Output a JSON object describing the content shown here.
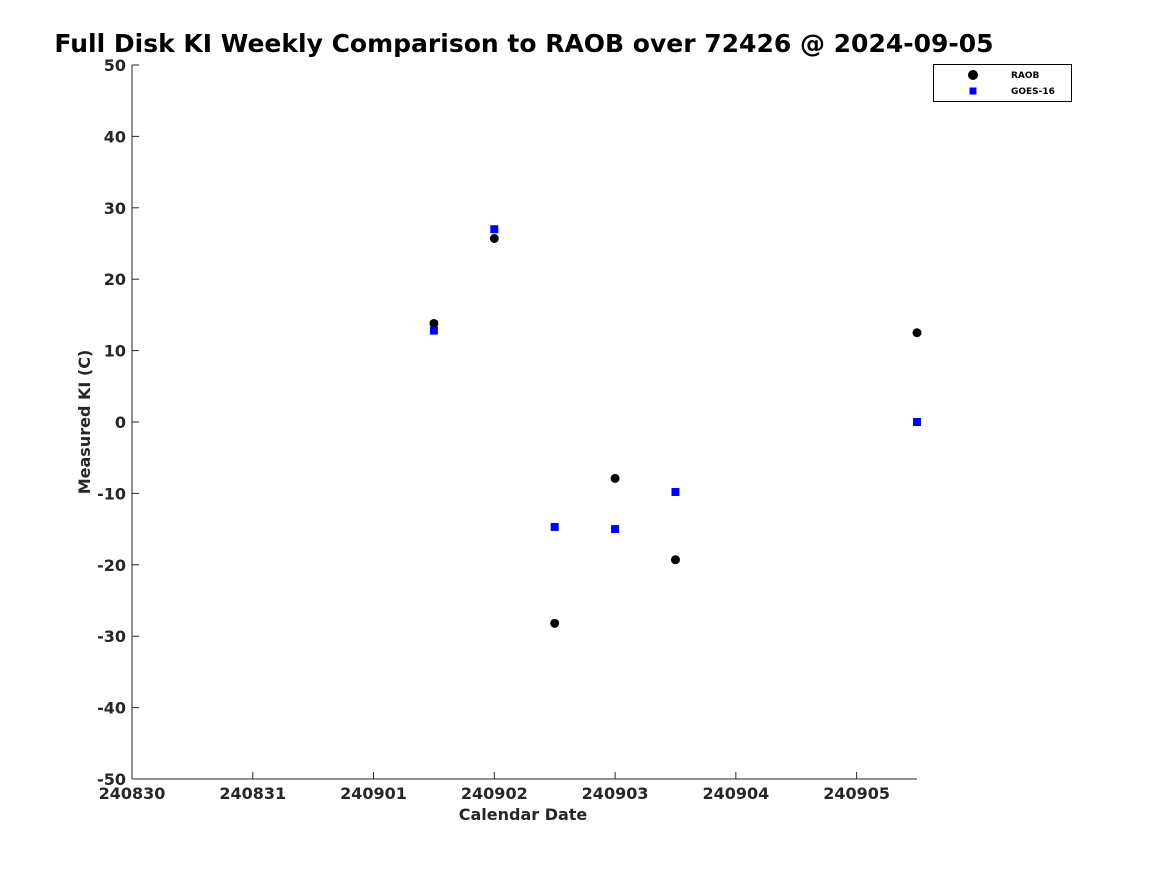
{
  "chart_data": {
    "type": "scatter",
    "title": "Full Disk KI Weekly Comparison to RAOB over 72426 @ 2024-09-05",
    "xlabel": "Calendar Date",
    "ylabel": "Measured KI (C)",
    "x_ticks": [
      "240830",
      "240831",
      "240901",
      "240902",
      "240903",
      "240904",
      "240905"
    ],
    "x_tick_values": [
      0,
      1,
      2,
      3,
      4,
      5,
      6
    ],
    "xlim": [
      0,
      6.5
    ],
    "y_ticks": [
      "50",
      "40",
      "30",
      "20",
      "10",
      "0",
      "-10",
      "-20",
      "-30",
      "-40",
      "-50"
    ],
    "y_tick_values": [
      50,
      40,
      30,
      20,
      10,
      0,
      -10,
      -20,
      -30,
      -40,
      -50
    ],
    "ylim": [
      -50,
      50
    ],
    "grid": false,
    "legend_position": "top-right",
    "series": [
      {
        "name": "RAOB",
        "marker": "circle",
        "color": "#000000",
        "points": [
          {
            "x": 2.5,
            "y": 13.8
          },
          {
            "x": 3.0,
            "y": 25.7
          },
          {
            "x": 3.5,
            "y": -28.2
          },
          {
            "x": 4.0,
            "y": -7.9
          },
          {
            "x": 4.5,
            "y": -19.3
          },
          {
            "x": 6.5,
            "y": 12.5
          }
        ]
      },
      {
        "name": "GOES-16",
        "marker": "square",
        "color": "#0000ff",
        "points": [
          {
            "x": 2.5,
            "y": 12.8
          },
          {
            "x": 3.0,
            "y": 27.0
          },
          {
            "x": 3.5,
            "y": -14.7
          },
          {
            "x": 4.0,
            "y": -15.0
          },
          {
            "x": 4.5,
            "y": -9.8
          },
          {
            "x": 6.5,
            "y": 0.0
          }
        ]
      }
    ]
  }
}
